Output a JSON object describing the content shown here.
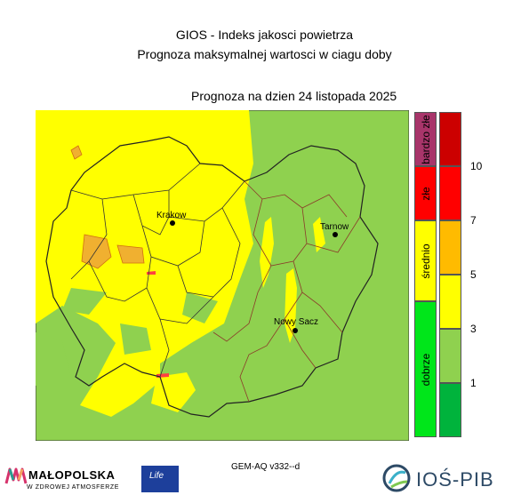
{
  "header": {
    "title": "GIOS - Indeks jakosci powietrza",
    "subtitle": "Prognoza maksymalnej wartosci w ciagu doby",
    "forecast_date": "Prognoza na dzien  24 listopada 2025"
  },
  "cities": [
    {
      "name": "Krakow"
    },
    {
      "name": "Tarnow"
    },
    {
      "name": "Nowy Sacz"
    }
  ],
  "legend": {
    "categories": [
      {
        "label": "bardzo złe",
        "color": "#a8356a"
      },
      {
        "label": "złe",
        "color": "#ff0000"
      },
      {
        "label": "średnio",
        "color": "#ffff00"
      },
      {
        "label": "dobrze",
        "color": "#00e61a"
      }
    ],
    "scale_colors": [
      "#cc0000",
      "#ff0000",
      "#ffbb00",
      "#ffff00",
      "#8fd14f",
      "#00b33c"
    ],
    "ticks": [
      "10",
      "7",
      "5",
      "3",
      "1"
    ]
  },
  "colors": {
    "good_green": "#8fd14f",
    "moderate_yellow": "#ffff00",
    "orange": "#f0b030",
    "boundary_dark": "#222222",
    "boundary_brown": "#8b3a2a"
  },
  "model_label": "GEM-AQ v332--d",
  "logos": {
    "malopolska_name": "MAŁOPOLSKA",
    "malopolska_sub": "W ZDROWEJ ATMOSFERZE",
    "eu_life": "Life",
    "pib_name": "IOŚ-PIB"
  }
}
